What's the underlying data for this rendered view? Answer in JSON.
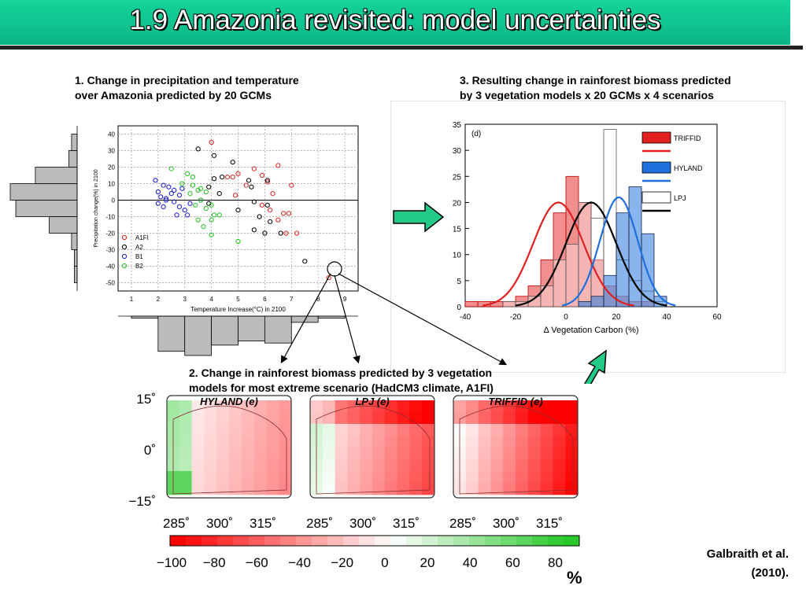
{
  "title": "1.9 Amazonia revisited: model uncertainties",
  "captions": {
    "c1_line1": "1. Change in precipitation and temperature",
    "c1_line2": "over Amazonia predicted by 20 GCMs",
    "c2_line1": "2. Change in rainforest biomass predicted by 3 vegetation",
    "c2_line2": "models for most extreme scenario (HadCM3 climate, A1FI)",
    "c3_line1": "3. Resulting change in rainforest biomass predicted",
    "c3_line2": "by 3 vegetation models x 20 GCMs x 4 scenarios"
  },
  "citation": {
    "line1": "Galbraith et al.",
    "line2": "(2010)."
  },
  "percent_unit": "%",
  "colors": {
    "a1fi": "#e02020",
    "a2": "#000000",
    "b1": "#1a1ad0",
    "b2": "#20c020",
    "triffid": "#e02020",
    "hyland": "#1f6fdc",
    "arrow": "#22cc88"
  },
  "chart_data": [
    {
      "type": "scatter",
      "xlabel": "Temperature Increase(°C) in 2100",
      "ylabel": "Precipitation change(%) in 2100",
      "xlim": [
        0.5,
        9.5
      ],
      "ylim": [
        -55,
        45
      ],
      "xticks": [
        1,
        2,
        3,
        4,
        5,
        6,
        7,
        8,
        9
      ],
      "yticks": [
        40,
        30,
        20,
        10,
        0,
        -10,
        -20,
        -30,
        -40,
        -50
      ],
      "grid": true,
      "legend_position": "bottom-left",
      "series": [
        {
          "name": "A1FI",
          "color": "#e02020",
          "points": [
            [
              4.0,
              35
            ],
            [
              6.5,
              21
            ],
            [
              5.9,
              15
            ],
            [
              5.3,
              9
            ],
            [
              5.6,
              19
            ],
            [
              4.6,
              14
            ],
            [
              4.8,
              14
            ],
            [
              5.0,
              16
            ],
            [
              6.1,
              11
            ],
            [
              6.3,
              4
            ],
            [
              5.9,
              -3
            ],
            [
              6.2,
              -6
            ],
            [
              6.7,
              -8
            ],
            [
              6.9,
              -8
            ],
            [
              6.5,
              -12
            ],
            [
              6.8,
              -20
            ],
            [
              7.2,
              -20
            ],
            [
              7.0,
              9
            ],
            [
              4.9,
              3
            ],
            [
              8.4,
              -47
            ]
          ]
        },
        {
          "name": "A2",
          "color": "#000000",
          "points": [
            [
              3.5,
              31
            ],
            [
              4.1,
              27
            ],
            [
              4.8,
              23
            ],
            [
              4.4,
              14
            ],
            [
              4.3,
              4
            ],
            [
              3.9,
              8
            ],
            [
              4.1,
              13
            ],
            [
              5.4,
              12
            ],
            [
              5.5,
              8
            ],
            [
              5.0,
              -6
            ],
            [
              5.8,
              -10
            ],
            [
              6.2,
              -13
            ],
            [
              6.0,
              -20
            ],
            [
              5.6,
              -18
            ],
            [
              6.6,
              -20
            ],
            [
              6.1,
              -3
            ],
            [
              5.6,
              -1
            ],
            [
              3.9,
              -2
            ],
            [
              7.5,
              -37
            ],
            [
              6.1,
              12
            ]
          ]
        },
        {
          "name": "B1",
          "color": "#1a1ad0",
          "points": [
            [
              1.9,
              12
            ],
            [
              2.2,
              9
            ],
            [
              2.0,
              5
            ],
            [
              2.4,
              8
            ],
            [
              2.6,
              6
            ],
            [
              2.8,
              3
            ],
            [
              2.1,
              2
            ],
            [
              2.3,
              0
            ],
            [
              2.6,
              -1
            ],
            [
              2.8,
              -4
            ],
            [
              3.0,
              -6
            ],
            [
              2.7,
              -9
            ],
            [
              3.1,
              -9
            ],
            [
              2.2,
              -4
            ],
            [
              2.5,
              4
            ],
            [
              3.2,
              -2
            ],
            [
              3.6,
              0
            ],
            [
              2.9,
              7
            ],
            [
              2.3,
              1
            ],
            [
              2.0,
              -2
            ]
          ]
        },
        {
          "name": "B2",
          "color": "#20c020",
          "points": [
            [
              2.5,
              19
            ],
            [
              3.1,
              16
            ],
            [
              3.3,
              14
            ],
            [
              2.9,
              10
            ],
            [
              3.3,
              9
            ],
            [
              3.6,
              7
            ],
            [
              3.8,
              5
            ],
            [
              3.6,
              0
            ],
            [
              4.0,
              -3
            ],
            [
              3.8,
              -5
            ],
            [
              4.1,
              -9
            ],
            [
              4.3,
              -9
            ],
            [
              3.4,
              -3
            ],
            [
              3.5,
              -12
            ],
            [
              4.0,
              -12
            ],
            [
              3.7,
              -16
            ],
            [
              4.0,
              -21
            ],
            [
              5.0,
              -25
            ],
            [
              3.5,
              6
            ],
            [
              3.2,
              4
            ]
          ]
        }
      ]
    },
    {
      "type": "bar",
      "title": "(d)",
      "xlabel": "Δ Vegetation Carbon (%)",
      "xlim": [
        -40,
        60
      ],
      "ylim": [
        0,
        35
      ],
      "xticks": [
        -40,
        -20,
        0,
        20,
        40,
        60
      ],
      "yticks": [
        0,
        5,
        10,
        15,
        20,
        25,
        30,
        35
      ],
      "legend_position": "top-right",
      "bin_width": 5,
      "series": [
        {
          "name": "TRIFFID",
          "bins_start": [
            -40,
            -35,
            -30,
            -25,
            -20,
            -15,
            -10,
            -5,
            0,
            5,
            10,
            15,
            20,
            25,
            30,
            35
          ],
          "values": [
            1,
            1,
            1,
            1,
            2,
            4,
            9,
            18,
            25,
            20,
            9,
            4,
            2,
            1,
            1,
            0
          ],
          "fit_mean": -3,
          "fit_sd": 10,
          "fit_peak": 20
        },
        {
          "name": "HYLAND",
          "bins_start": [
            5,
            10,
            15,
            20,
            25,
            30,
            35
          ],
          "values": [
            1,
            2,
            6,
            18,
            23,
            14,
            2
          ],
          "fit_mean": 21,
          "fit_sd": 7.5,
          "fit_peak": 21
        },
        {
          "name": "LPJ",
          "bins_start": [
            -25,
            -20,
            -15,
            -10,
            -5,
            0,
            5,
            10,
            15,
            20,
            25,
            30,
            35
          ],
          "values": [
            1,
            1,
            2,
            4,
            9,
            12,
            20,
            17,
            34,
            9,
            5,
            3,
            1
          ],
          "fit_mean": 10,
          "fit_sd": 10,
          "fit_peak": 20
        }
      ]
    }
  ],
  "maps": {
    "panels": [
      {
        "label": "HYLAND (e)"
      },
      {
        "label": "LPJ (e)"
      },
      {
        "label": "TRIFFID (e)"
      }
    ],
    "lat_labels": [
      "15˚",
      "0˚",
      "−15˚"
    ],
    "lon_labels": [
      "285˚",
      "300˚",
      "315˚"
    ],
    "colorbar_ticks": [
      "−100",
      "−80",
      "−60",
      "−40",
      "−20",
      "0",
      "20",
      "40",
      "60",
      "80"
    ]
  }
}
